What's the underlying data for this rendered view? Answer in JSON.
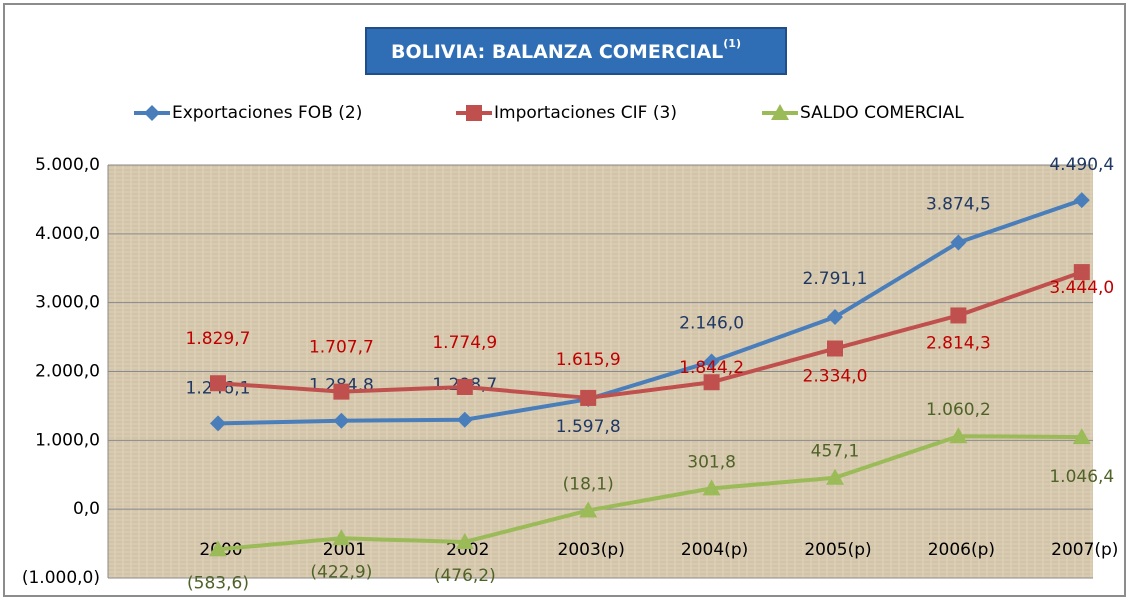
{
  "chart_data": {
    "type": "line",
    "title": "BOLIVIA: BALANZA COMERCIAL",
    "title_superscript": "(1)",
    "categories": [
      "2000",
      "2001",
      "2002",
      "2003(p)",
      "2004(p)",
      "2005(p)",
      "2006(p)",
      "2007(p)"
    ],
    "series": [
      {
        "name": "Exportaciones FOB (2)",
        "color": "#4a7ebb",
        "marker": "diamond",
        "values": [
          1246.1,
          1284.8,
          1298.7,
          1597.8,
          2146.0,
          2791.1,
          3874.5,
          4490.4
        ],
        "value_labels": [
          "1.246,1",
          "1.284,8",
          "1.298,7",
          "1.597,8",
          "2.146,0",
          "2.791,1",
          "3.874,5",
          "4.490,4"
        ]
      },
      {
        "name": "Importaciones CIF (3)",
        "color": "#c0504d",
        "marker": "square",
        "values": [
          1829.7,
          1707.7,
          1774.9,
          1615.9,
          1844.2,
          2334.0,
          2814.3,
          3444.0
        ],
        "value_labels": [
          "1.829,7",
          "1.707,7",
          "1.774,9",
          "1.615,9",
          "1.844,2",
          "2.334,0",
          "2.814,3",
          "3.444,0"
        ]
      },
      {
        "name": "SALDO COMERCIAL",
        "color": "#9bbb59",
        "marker": "triangle",
        "values": [
          -583.6,
          -422.9,
          -476.2,
          -18.1,
          301.8,
          457.1,
          1060.2,
          1046.4
        ],
        "value_labels": [
          "(583,6)",
          "(422,9)",
          "(476,2)",
          "(18,1)",
          "301,8",
          "457,1",
          "1.060,2",
          "1.046,4"
        ]
      }
    ],
    "ylim": [
      -1000,
      5000
    ],
    "yticks": [
      {
        "value": -1000,
        "label": "(1.000,0)"
      },
      {
        "value": 0,
        "label": "0,0"
      },
      {
        "value": 1000,
        "label": "1.000,0"
      },
      {
        "value": 2000,
        "label": "2.000,0"
      },
      {
        "value": 3000,
        "label": "3.000,0"
      },
      {
        "value": 4000,
        "label": "4.000,0"
      },
      {
        "value": 5000,
        "label": "5.000,0"
      }
    ],
    "grid": true,
    "legend": "top"
  }
}
